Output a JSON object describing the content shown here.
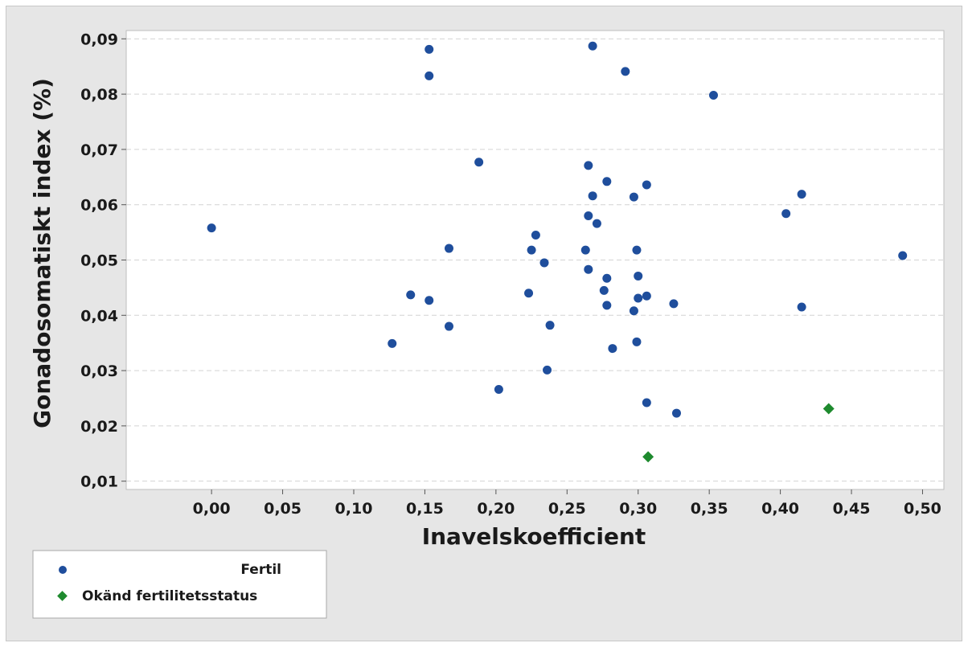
{
  "chart_data": {
    "type": "scatter",
    "xlabel": "Inavelskoefficient",
    "ylabel": "Gonadosomatiskt index (%)",
    "xlim": [
      -0.06,
      0.515
    ],
    "ylim": [
      0.0085,
      0.0915
    ],
    "x_ticks": [
      0.0,
      0.05,
      0.1,
      0.15,
      0.2,
      0.25,
      0.3,
      0.35,
      0.4,
      0.45,
      0.5
    ],
    "x_tick_labels": [
      "0,00",
      "0,05",
      "0,10",
      "0,15",
      "0,20",
      "0,25",
      "0,30",
      "0,35",
      "0,40",
      "0,45",
      "0,50"
    ],
    "y_ticks": [
      0.01,
      0.02,
      0.03,
      0.04,
      0.05,
      0.06,
      0.07,
      0.08,
      0.09
    ],
    "y_tick_labels": [
      "0,01",
      "0,02",
      "0,03",
      "0,04",
      "0,05",
      "0,06",
      "0,07",
      "0,08",
      "0,09"
    ],
    "grid": "horizontal dashed",
    "legend_position": "bottom-left",
    "series": [
      {
        "name": "Fertil",
        "color": "#1f4e9c",
        "marker": "circle",
        "points": [
          [
            0.0,
            0.0558
          ],
          [
            0.127,
            0.0349
          ],
          [
            0.14,
            0.0437
          ],
          [
            0.153,
            0.0881
          ],
          [
            0.153,
            0.0833
          ],
          [
            0.153,
            0.0427
          ],
          [
            0.167,
            0.0521
          ],
          [
            0.167,
            0.038
          ],
          [
            0.188,
            0.0677
          ],
          [
            0.202,
            0.0266
          ],
          [
            0.223,
            0.044
          ],
          [
            0.225,
            0.0518
          ],
          [
            0.228,
            0.0545
          ],
          [
            0.234,
            0.0495
          ],
          [
            0.236,
            0.0301
          ],
          [
            0.238,
            0.0382
          ],
          [
            0.263,
            0.0518
          ],
          [
            0.265,
            0.0671
          ],
          [
            0.265,
            0.058
          ],
          [
            0.265,
            0.0483
          ],
          [
            0.268,
            0.0887
          ],
          [
            0.268,
            0.0616
          ],
          [
            0.271,
            0.0566
          ],
          [
            0.276,
            0.0445
          ],
          [
            0.278,
            0.0642
          ],
          [
            0.278,
            0.0467
          ],
          [
            0.278,
            0.0418
          ],
          [
            0.282,
            0.034
          ],
          [
            0.291,
            0.0841
          ],
          [
            0.297,
            0.0614
          ],
          [
            0.297,
            0.0408
          ],
          [
            0.299,
            0.0518
          ],
          [
            0.299,
            0.0352
          ],
          [
            0.3,
            0.0471
          ],
          [
            0.3,
            0.0431
          ],
          [
            0.306,
            0.0636
          ],
          [
            0.306,
            0.0435
          ],
          [
            0.306,
            0.0242
          ],
          [
            0.325,
            0.0421
          ],
          [
            0.327,
            0.0223
          ],
          [
            0.353,
            0.0798
          ],
          [
            0.404,
            0.0584
          ],
          [
            0.415,
            0.0619
          ],
          [
            0.415,
            0.0415
          ],
          [
            0.486,
            0.0508
          ]
        ]
      },
      {
        "name": "Okänd fertilitetsstatus",
        "color": "#1e8a2e",
        "marker": "diamond",
        "points": [
          [
            0.307,
            0.0144
          ],
          [
            0.434,
            0.0231
          ]
        ]
      }
    ]
  }
}
